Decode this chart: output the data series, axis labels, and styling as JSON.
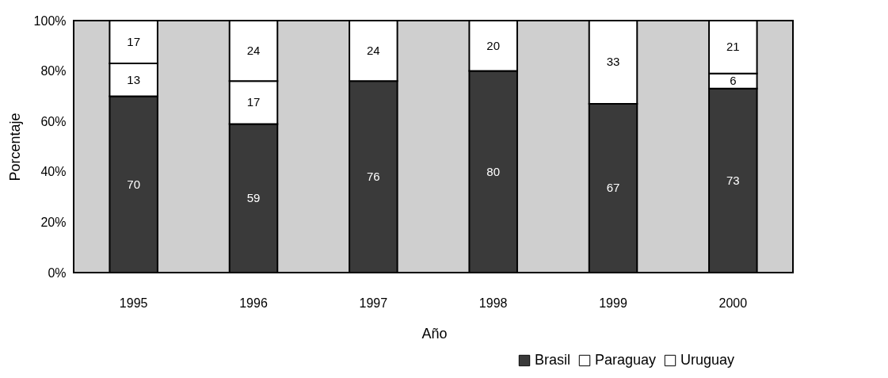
{
  "chart_data": {
    "type": "bar",
    "stacked": true,
    "xlabel": "Año",
    "ylabel": "Porcentaje",
    "categories": [
      "1995",
      "1996",
      "1997",
      "1998",
      "1999",
      "2000"
    ],
    "series": [
      {
        "name": "Brasil",
        "color": "#3a3a3a",
        "values": [
          70,
          59,
          76,
          80,
          67,
          73
        ]
      },
      {
        "name": "Paraguay",
        "color": "#ffffff",
        "values": [
          13,
          17,
          null,
          null,
          null,
          6
        ]
      },
      {
        "name": "Uruguay",
        "color": "#ffffff",
        "values": [
          17,
          24,
          24,
          20,
          33,
          21
        ]
      }
    ],
    "ylim": [
      0,
      100
    ],
    "yticks": [
      {
        "value": 0,
        "label": "0%"
      },
      {
        "value": 20,
        "label": "20%"
      },
      {
        "value": 40,
        "label": "40%"
      },
      {
        "value": 60,
        "label": "60%"
      },
      {
        "value": 80,
        "label": "80%"
      },
      {
        "value": 100,
        "label": "100%"
      }
    ],
    "data_labels": true,
    "legend": "bottom right",
    "grid": false
  }
}
